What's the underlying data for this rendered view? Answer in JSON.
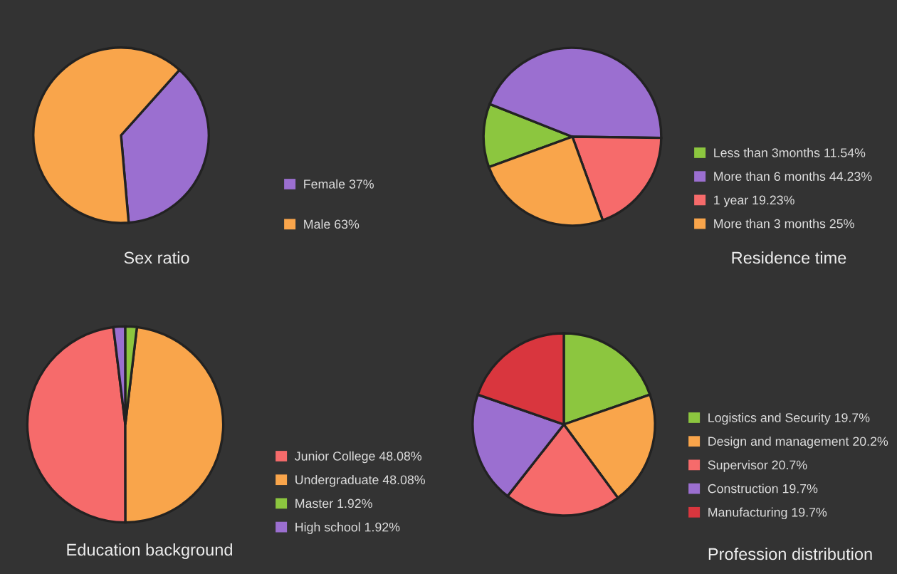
{
  "chart_data": [
    {
      "type": "pie",
      "title": "Sex ratio",
      "legend": "right",
      "categories": [
        "Female",
        "Male"
      ],
      "values": [
        37,
        63
      ],
      "value_labels": [
        "37%",
        "63%"
      ],
      "colors": [
        "#9b6fd0",
        "#f9a54b"
      ]
    },
    {
      "type": "pie",
      "title": "Residence time",
      "legend": "right",
      "categories": [
        "Less than 3months",
        "More than 6 months",
        "1 year",
        "More than 3 months"
      ],
      "values": [
        11.54,
        44.23,
        19.23,
        25
      ],
      "value_labels": [
        "11.54%",
        "44.23%",
        "19.23%",
        "25%"
      ],
      "colors": [
        "#8cc63f",
        "#9b6fd0",
        "#f66b6b",
        "#f9a54b"
      ]
    },
    {
      "type": "pie",
      "title": "Education background",
      "legend": "right",
      "categories": [
        "Junior College",
        "Undergraduate",
        "Master",
        "High school"
      ],
      "values": [
        48.08,
        48.08,
        1.92,
        1.92
      ],
      "value_labels": [
        "48.08%",
        "48.08%",
        "1.92%",
        "1.92%"
      ],
      "colors": [
        "#f66b6b",
        "#f9a54b",
        "#8cc63f",
        "#9b6fd0"
      ]
    },
    {
      "type": "pie",
      "title": "Profession distribution",
      "legend": "right",
      "categories": [
        "Logistics and Security",
        "Design and management",
        "Supervisor",
        "Construction",
        "Manufacturing"
      ],
      "values": [
        19.7,
        20.2,
        20.7,
        19.7,
        19.7
      ],
      "value_labels": [
        "19.7%",
        "20.2%",
        "20.7%",
        "19.7%",
        "19.7%"
      ],
      "colors": [
        "#8cc63f",
        "#f9a54b",
        "#f66b6b",
        "#9b6fd0",
        "#d9363e"
      ]
    }
  ]
}
